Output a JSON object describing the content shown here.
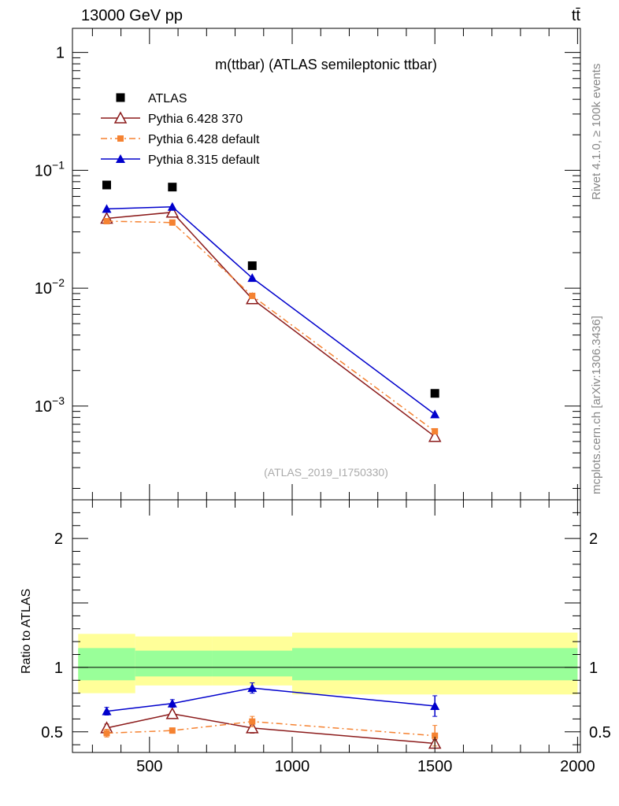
{
  "header": {
    "left": "13000 GeV pp",
    "right": "tt̄"
  },
  "side_labels": {
    "rivet": "Rivet 4.1.0, ≥ 100k events",
    "mcplots": "mcplots.cern.ch [arXiv:1306.3436]"
  },
  "analysis_tag": "(ATLAS_2019_I1750330)",
  "chart_data": [
    {
      "type": "line",
      "panel": "main",
      "title": "m(ttbar) (ATLAS semileptonic ttbar)",
      "xlabel": "",
      "ylabel": "",
      "yscale": "log",
      "xlim": [
        230,
        2010
      ],
      "ylim": [
        0.00016,
        1.6
      ],
      "ytick_values": [
        1,
        0.1,
        0.01,
        0.001
      ],
      "ytick_labels": [
        {
          "base": "1",
          "exp": ""
        },
        {
          "base": "10",
          "exp": "−1"
        },
        {
          "base": "10",
          "exp": "−2"
        },
        {
          "base": "10",
          "exp": "−3"
        }
      ],
      "legend_position": "top-left",
      "x": [
        350,
        580,
        860,
        1500
      ],
      "series": [
        {
          "name": "ATLAS",
          "marker": "square-filled",
          "color": "#000000",
          "line": "none",
          "values": [
            0.075,
            0.072,
            0.0155,
            0.00128
          ]
        },
        {
          "name": "Pythia 6.428 370",
          "marker": "triangle-open",
          "color": "#8b1a1a",
          "line": "solid",
          "values": [
            0.039,
            0.044,
            0.0081,
            0.00055
          ]
        },
        {
          "name": "Pythia 6.428 default",
          "marker": "square-small",
          "color": "#f58231",
          "line": "dashdot",
          "values": [
            0.037,
            0.036,
            0.0086,
            0.00061
          ]
        },
        {
          "name": "Pythia 8.315 default",
          "marker": "triangle-filled",
          "color": "#0000cc",
          "line": "solid",
          "values": [
            0.047,
            0.049,
            0.0122,
            0.00085
          ]
        }
      ]
    },
    {
      "type": "line",
      "panel": "ratio",
      "title": "",
      "xlabel": "",
      "ylabel": "Ratio to ATLAS",
      "yscale": "linear",
      "xlim": [
        230,
        2010
      ],
      "ylim": [
        0.34,
        2.3
      ],
      "xticks": [
        500,
        1000,
        1500,
        2000
      ],
      "xtick_labels": [
        "500",
        "1000",
        "1500",
        "2000"
      ],
      "yticks": [
        0.5,
        1,
        2
      ],
      "ytick_labels": [
        "0.5",
        "1",
        "2"
      ],
      "bin_edges": [
        250,
        450,
        720,
        1000,
        2000
      ],
      "band_outer": [
        [
          0.8,
          1.26
        ],
        [
          0.86,
          1.24
        ],
        [
          0.86,
          1.24
        ],
        [
          0.79,
          1.27
        ]
      ],
      "band_inner": [
        [
          0.9,
          1.15
        ],
        [
          0.93,
          1.13
        ],
        [
          0.93,
          1.13
        ],
        [
          0.9,
          1.15
        ]
      ],
      "x": [
        350,
        580,
        860,
        1500
      ],
      "series": [
        {
          "name": "Pythia 6.428 370",
          "color": "#8b1a1a",
          "marker": "triangle-open",
          "line": "solid",
          "values": [
            0.53,
            0.64,
            0.53,
            0.41
          ],
          "err": [
            0.03,
            0.02,
            0.04,
            0.03
          ]
        },
        {
          "name": "Pythia 6.428 default",
          "color": "#f58231",
          "marker": "square-small",
          "line": "dashdot",
          "values": [
            0.49,
            0.51,
            0.58,
            0.47
          ],
          "err": [
            0.03,
            0.02,
            0.04,
            0.08
          ]
        },
        {
          "name": "Pythia 8.315 default",
          "color": "#0000cc",
          "marker": "triangle-filled",
          "line": "solid",
          "values": [
            0.66,
            0.72,
            0.84,
            0.7
          ],
          "err": [
            0.03,
            0.03,
            0.04,
            0.08
          ]
        }
      ]
    }
  ],
  "colors": {
    "band_outer": "#ffff99",
    "band_inner": "#99ff99",
    "frame": "#000000"
  }
}
